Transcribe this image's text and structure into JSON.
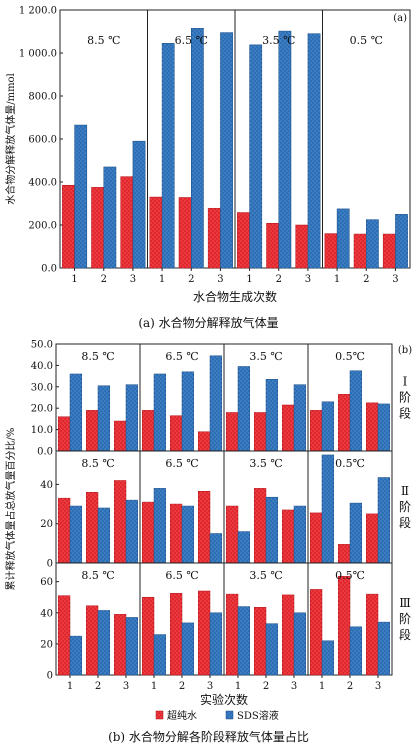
{
  "colors": {
    "pure_water": "#e3272d",
    "sds": "#2a6fb8",
    "frame": "#222222",
    "bg": "#ffffff"
  },
  "legend": {
    "pure_water": "超纯水",
    "sds": "SDS溶液"
  },
  "chart_data": [
    {
      "type": "bar",
      "panel_tag": "(a)",
      "caption": "(a) 水合物分解释放气体量",
      "ylabel": "水合物分解释放气体量/mmol",
      "xlabel": "水合物生成次数",
      "ylim": [
        0,
        1200
      ],
      "yticks": [
        "0.0",
        "200.0",
        "400.0",
        "600.0",
        "800.0",
        "1 000.0",
        "1 200.0"
      ],
      "groups": [
        {
          "label": "8.5 ℃",
          "categories": [
            "1",
            "2",
            "3"
          ],
          "pure_water": [
            385,
            375,
            425
          ],
          "sds": [
            665,
            470,
            590
          ]
        },
        {
          "label": "6.5 ℃",
          "categories": [
            "1",
            "2",
            "3"
          ],
          "pure_water": [
            330,
            328,
            278
          ],
          "sds": [
            1045,
            1115,
            1095
          ]
        },
        {
          "label": "3.5 ℃",
          "categories": [
            "1",
            "2",
            "3"
          ],
          "pure_water": [
            258,
            208,
            200
          ],
          "sds": [
            1038,
            1102,
            1090
          ]
        },
        {
          "label": "0.5 ℃",
          "categories": [
            "1",
            "2",
            "3"
          ],
          "pure_water": [
            160,
            158,
            158
          ],
          "sds": [
            275,
            225,
            250
          ]
        }
      ]
    },
    {
      "type": "bar",
      "panel_tag": "(b)",
      "caption": "(b) 水合物分解各阶段释放气体量占比",
      "ylabel": "累计释放气体量占总放气量百分比/%",
      "xlabel": "实验次数",
      "temperatures": [
        "8.5 ℃",
        "6.5 ℃",
        "3.5 ℃",
        "0.5℃"
      ],
      "categories": [
        "1",
        "2",
        "3"
      ],
      "stages": [
        {
          "label": "Ⅰ阶段",
          "ylim": [
            0,
            50
          ],
          "yticks": [
            "0.0",
            "10.0",
            "20.0",
            "30.0",
            "40.0",
            "50.0"
          ],
          "groups": [
            {
              "pure_water": [
                16,
                19,
                14
              ],
              "sds": [
                36,
                30.5,
                31
              ]
            },
            {
              "pure_water": [
                19,
                16.5,
                9
              ],
              "sds": [
                36,
                37,
                44.5
              ]
            },
            {
              "pure_water": [
                18,
                18,
                21.5
              ],
              "sds": [
                39.5,
                33.5,
                31
              ]
            },
            {
              "pure_water": [
                19,
                26.5,
                22.5
              ],
              "sds": [
                23,
                37.5,
                22
              ]
            }
          ]
        },
        {
          "label": "Ⅱ阶段",
          "ylim": [
            0,
            57
          ],
          "yticks": [
            "0",
            "20",
            "40"
          ],
          "groups": [
            {
              "pure_water": [
                33,
                36,
                42
              ],
              "sds": [
                29,
                28,
                32
              ]
            },
            {
              "pure_water": [
                31,
                30,
                36.5
              ],
              "sds": [
                38,
                29,
                15
              ]
            },
            {
              "pure_water": [
                29,
                38,
                27
              ],
              "sds": [
                16,
                33.5,
                29
              ]
            },
            {
              "pure_water": [
                25.5,
                9.5,
                25
              ],
              "sds": [
                55,
                30.5,
                43.5
              ]
            }
          ]
        },
        {
          "label": "Ⅲ阶段",
          "ylim": [
            0,
            72
          ],
          "yticks": [
            "0",
            "20",
            "40",
            "60"
          ],
          "groups": [
            {
              "pure_water": [
                51,
                44.5,
                39
              ],
              "sds": [
                25,
                41.5,
                37
              ]
            },
            {
              "pure_water": [
                50,
                52.5,
                54
              ],
              "sds": [
                26,
                33.5,
                40
              ]
            },
            {
              "pure_water": [
                52,
                43.5,
                51.5
              ],
              "sds": [
                44,
                33,
                40
              ]
            },
            {
              "pure_water": [
                55,
                63.5,
                52
              ],
              "sds": [
                22,
                31,
                34
              ]
            }
          ]
        }
      ]
    }
  ]
}
